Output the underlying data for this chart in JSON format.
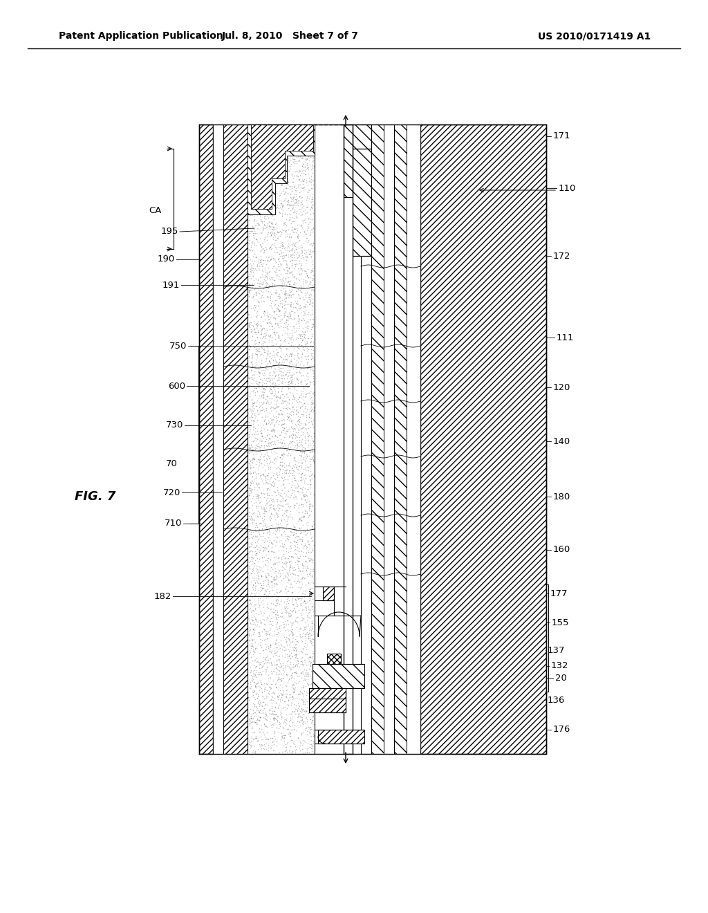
{
  "header_left": "Patent Application Publication",
  "header_mid": "Jul. 8, 2010   Sheet 7 of 7",
  "header_right": "US 2010/0171419 A1",
  "fig_label": "FIG. 7",
  "bg": "#ffffff",
  "lc": "#000000"
}
